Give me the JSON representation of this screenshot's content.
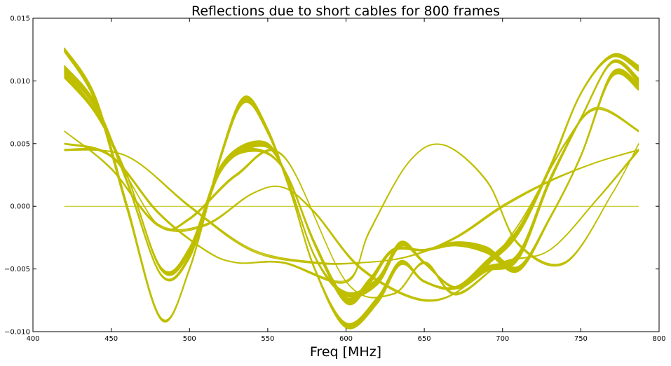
{
  "chart_data": {
    "type": "line",
    "title": "Reflections due to short cables for 800 frames",
    "xlabel": "Freq [MHz]",
    "ylabel": "",
    "xlim": [
      400,
      800
    ],
    "ylim": [
      -0.01,
      0.015
    ],
    "xticks": [
      400,
      450,
      500,
      550,
      600,
      650,
      700,
      750,
      800
    ],
    "xtick_labels": [
      "400",
      "450",
      "500",
      "550",
      "600",
      "650",
      "700",
      "750",
      "800"
    ],
    "yticks": [
      -0.01,
      -0.005,
      0.0,
      0.005,
      0.01,
      0.015
    ],
    "ytick_labels": [
      "−0.010",
      "−0.005",
      "0.000",
      "0.005",
      "0.010",
      "0.015"
    ],
    "grid": false,
    "legend": "none",
    "line_color": "#bfbf00",
    "x_range_of_data": [
      420,
      787
    ],
    "representative_series": [
      {
        "x": [
          420,
          440,
          460,
          482,
          500,
          520,
          535,
          550,
          565,
          580,
          600,
          620,
          635,
          650,
          670,
          690,
          710,
          730,
          750,
          770,
          787
        ],
        "values": [
          0.0125,
          0.0085,
          0.0,
          -0.009,
          -0.005,
          0.004,
          0.0085,
          0.006,
          0.001,
          -0.005,
          -0.0095,
          -0.0075,
          -0.0045,
          -0.006,
          -0.0065,
          -0.0045,
          -0.002,
          0.003,
          0.009,
          0.012,
          0.011
        ]
      },
      {
        "x": [
          420,
          440,
          460,
          482,
          500,
          520,
          545,
          560,
          580,
          600,
          620,
          635,
          650,
          670,
          690,
          710,
          730,
          750,
          770,
          787
        ],
        "values": [
          0.011,
          0.008,
          0.002,
          -0.0055,
          -0.004,
          0.003,
          0.005,
          0.003,
          -0.004,
          -0.007,
          -0.006,
          -0.003,
          -0.0045,
          -0.0065,
          -0.005,
          -0.004,
          0.002,
          0.007,
          0.0115,
          0.01
        ]
      },
      {
        "x": [
          420,
          440,
          460,
          482,
          500,
          520,
          540,
          560,
          580,
          600,
          615,
          630,
          650,
          670,
          690,
          710,
          730,
          750,
          770,
          787
        ],
        "values": [
          0.0105,
          0.0075,
          0.0025,
          -0.005,
          -0.0035,
          0.003,
          0.0045,
          0.003,
          -0.003,
          -0.0075,
          -0.006,
          -0.0035,
          -0.0035,
          -0.003,
          -0.0035,
          -0.005,
          -0.001,
          0.004,
          0.0105,
          0.0095
        ]
      },
      {
        "x": [
          420,
          450,
          480,
          500,
          530,
          560,
          600,
          630,
          650,
          670,
          700,
          730,
          760,
          787
        ],
        "values": [
          0.0045,
          0.004,
          -0.0015,
          -0.001,
          0.0025,
          0.004,
          -0.006,
          -0.007,
          -0.0045,
          -0.007,
          -0.0045,
          -0.0035,
          0.0005,
          0.0045
        ]
      },
      {
        "x": [
          420,
          460,
          500,
          540,
          580,
          610,
          640,
          670,
          700,
          730,
          760,
          787
        ],
        "values": [
          0.0045,
          0.004,
          0.0,
          -0.0035,
          -0.0045,
          -0.0045,
          -0.004,
          -0.0025,
          0.0,
          0.002,
          0.0035,
          0.0045
        ]
      },
      {
        "x": [
          420,
          450,
          480,
          510,
          540,
          560,
          580,
          610,
          650,
          680,
          710,
          740,
          760,
          787
        ],
        "values": [
          0.006,
          0.003,
          -0.0015,
          -0.0015,
          0.001,
          0.0015,
          -0.0005,
          -0.005,
          -0.0075,
          -0.006,
          -0.0015,
          0.005,
          0.0078,
          0.006
        ]
      },
      {
        "x": [
          420,
          450,
          480,
          510,
          530,
          560,
          600,
          615,
          640,
          662,
          690,
          710,
          740,
          770,
          787
        ],
        "values": [
          0.005,
          0.004,
          -0.0005,
          -0.0035,
          -0.0045,
          -0.0045,
          -0.006,
          -0.002,
          0.0035,
          0.0049,
          0.002,
          -0.003,
          -0.0045,
          0.001,
          0.005
        ]
      },
      {
        "x": [
          420,
          787
        ],
        "values": [
          0.0,
          0.0
        ]
      }
    ]
  }
}
